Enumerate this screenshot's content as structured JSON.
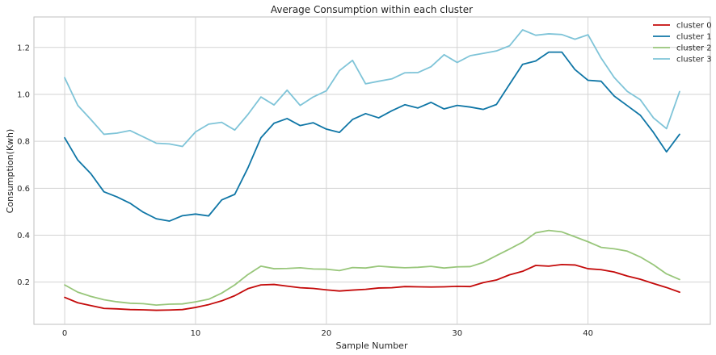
{
  "chart_data": {
    "type": "line",
    "title": "Average Consumption within each cluster",
    "xlabel": "Sample Number",
    "ylabel": "Consumption(Kwh)",
    "xlim": [
      -2.35,
      49.35
    ],
    "ylim": [
      0.02,
      1.33
    ],
    "xticks": [
      0,
      10,
      20,
      30,
      40
    ],
    "yticks": [
      0.2,
      0.4,
      0.6,
      0.8,
      1.0,
      1.2
    ],
    "ytick_labels": [
      "0.2",
      "0.4",
      "0.6",
      "0.8",
      "1.0",
      "1.2"
    ],
    "grid": true,
    "legend_position": "top-right",
    "x": [
      0,
      1,
      2,
      3,
      4,
      5,
      6,
      7,
      8,
      9,
      10,
      11,
      12,
      13,
      14,
      15,
      16,
      17,
      18,
      19,
      20,
      21,
      22,
      23,
      24,
      25,
      26,
      27,
      28,
      29,
      30,
      31,
      32,
      33,
      34,
      35,
      36,
      37,
      38,
      39,
      40,
      41,
      42,
      43,
      44,
      45,
      46,
      47
    ],
    "series": [
      {
        "name": "cluster 0",
        "color": "#c40a0a",
        "values": [
          0.135,
          0.112,
          0.1,
          0.088,
          0.086,
          0.083,
          0.082,
          0.08,
          0.081,
          0.083,
          0.092,
          0.104,
          0.12,
          0.142,
          0.172,
          0.188,
          0.19,
          0.183,
          0.176,
          0.173,
          0.167,
          0.162,
          0.166,
          0.169,
          0.175,
          0.176,
          0.181,
          0.18,
          0.179,
          0.18,
          0.182,
          0.181,
          0.198,
          0.209,
          0.231,
          0.246,
          0.271,
          0.268,
          0.275,
          0.273,
          0.257,
          0.253,
          0.243,
          0.226,
          0.212,
          0.194,
          0.177,
          0.157
        ]
      },
      {
        "name": "cluster 1",
        "color": "#0f76a6",
        "values": [
          0.815,
          0.72,
          0.662,
          0.585,
          0.563,
          0.536,
          0.498,
          0.47,
          0.46,
          0.483,
          0.49,
          0.482,
          0.55,
          0.574,
          0.686,
          0.815,
          0.877,
          0.897,
          0.867,
          0.879,
          0.852,
          0.838,
          0.893,
          0.918,
          0.9,
          0.93,
          0.956,
          0.942,
          0.966,
          0.938,
          0.953,
          0.946,
          0.936,
          0.957,
          1.043,
          1.128,
          1.142,
          1.18,
          1.18,
          1.106,
          1.06,
          1.056,
          0.993,
          0.952,
          0.911,
          0.838,
          0.755,
          0.83
        ]
      },
      {
        "name": "cluster 2",
        "color": "#98c67a",
        "values": [
          0.188,
          0.157,
          0.139,
          0.125,
          0.116,
          0.11,
          0.108,
          0.102,
          0.106,
          0.107,
          0.116,
          0.127,
          0.153,
          0.188,
          0.232,
          0.268,
          0.257,
          0.258,
          0.261,
          0.256,
          0.255,
          0.249,
          0.262,
          0.26,
          0.268,
          0.264,
          0.261,
          0.263,
          0.267,
          0.26,
          0.265,
          0.266,
          0.284,
          0.313,
          0.341,
          0.37,
          0.41,
          0.42,
          0.414,
          0.393,
          0.372,
          0.348,
          0.342,
          0.332,
          0.307,
          0.274,
          0.235,
          0.211
        ]
      },
      {
        "name": "cluster 3",
        "color": "#7fc4d8",
        "values": [
          1.071,
          0.953,
          0.893,
          0.83,
          0.835,
          0.846,
          0.819,
          0.792,
          0.789,
          0.778,
          0.84,
          0.873,
          0.881,
          0.848,
          0.914,
          0.989,
          0.955,
          1.018,
          0.953,
          0.989,
          1.015,
          1.101,
          1.145,
          1.045,
          1.056,
          1.066,
          1.092,
          1.093,
          1.118,
          1.169,
          1.136,
          1.165,
          1.175,
          1.185,
          1.207,
          1.275,
          1.252,
          1.258,
          1.255,
          1.235,
          1.254,
          1.155,
          1.072,
          1.013,
          0.977,
          0.9,
          0.854,
          1.012
        ]
      }
    ]
  }
}
